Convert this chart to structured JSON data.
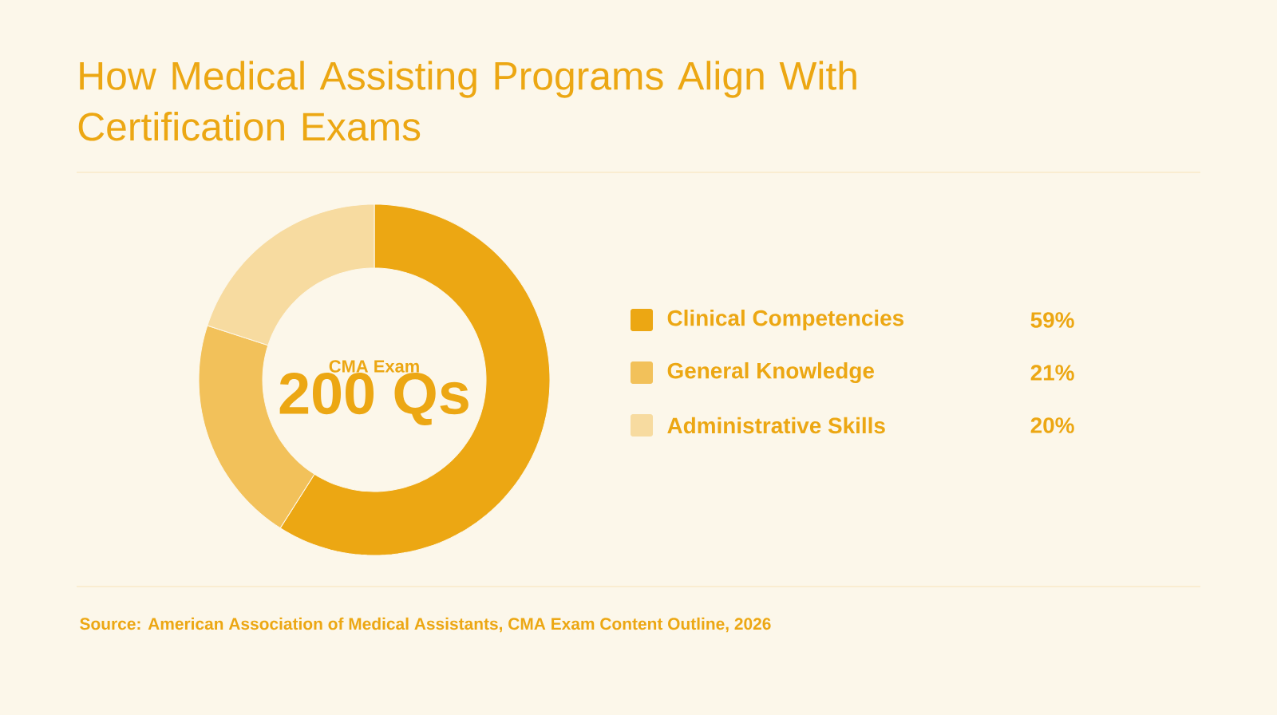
{
  "chart_data": {
    "type": "donut",
    "title": "How Medical Assisting Programs Align With Certification Exams",
    "categories": [
      "Clinical Competencies",
      "General Knowledge",
      "Administrative Skills"
    ],
    "values": [
      59,
      21,
      20
    ],
    "value_labels": [
      "59%",
      "21%",
      "20%"
    ],
    "colors": [
      "#eca713",
      "#f2c15a",
      "#f7dba0"
    ],
    "legend": "right",
    "annotations": [
      "CMA Exam",
      "200 Qs",
      "Source: American Association of Medical Assistants, CMA Exam Content Outline, 2026"
    ]
  }
}
